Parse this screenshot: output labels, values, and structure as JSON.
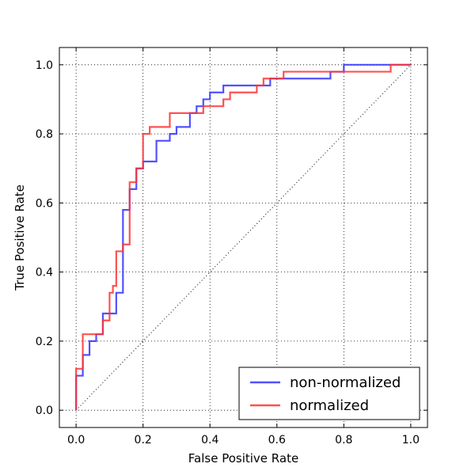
{
  "chart_data": {
    "type": "line",
    "xlabel": "False Positive Rate",
    "ylabel": "True Positive Rate",
    "xlim": [
      -0.05,
      1.05
    ],
    "ylim": [
      -0.05,
      1.05
    ],
    "xticks": [
      0.0,
      0.2,
      0.4,
      0.6,
      0.8,
      1.0
    ],
    "yticks": [
      0.0,
      0.2,
      0.4,
      0.6,
      0.8,
      1.0
    ],
    "xtick_labels": [
      "0.0",
      "0.2",
      "0.4",
      "0.6",
      "0.8",
      "1.0"
    ],
    "ytick_labels": [
      "0.0",
      "0.2",
      "0.4",
      "0.6",
      "0.8",
      "1.0"
    ],
    "grid": true,
    "legend_position": "lower-right",
    "series": [
      {
        "name": "non-normalized",
        "color": "#3333ff",
        "step": "post",
        "x": [
          0.0,
          0.0,
          0.02,
          0.02,
          0.04,
          0.04,
          0.06,
          0.06,
          0.08,
          0.08,
          0.1,
          0.1,
          0.12,
          0.12,
          0.14,
          0.14,
          0.16,
          0.16,
          0.18,
          0.18,
          0.2,
          0.2,
          0.24,
          0.24,
          0.28,
          0.28,
          0.3,
          0.3,
          0.34,
          0.34,
          0.36,
          0.36,
          0.38,
          0.38,
          0.4,
          0.4,
          0.44,
          0.44,
          0.58,
          0.58,
          0.76,
          0.76,
          0.8,
          0.8,
          1.0
        ],
        "y": [
          0.0,
          0.1,
          0.1,
          0.16,
          0.16,
          0.2,
          0.2,
          0.22,
          0.22,
          0.28,
          0.28,
          0.28,
          0.28,
          0.34,
          0.34,
          0.58,
          0.58,
          0.64,
          0.64,
          0.7,
          0.7,
          0.72,
          0.72,
          0.78,
          0.78,
          0.8,
          0.8,
          0.82,
          0.82,
          0.86,
          0.86,
          0.88,
          0.88,
          0.9,
          0.9,
          0.92,
          0.92,
          0.94,
          0.94,
          0.96,
          0.96,
          0.98,
          0.98,
          1.0,
          1.0
        ]
      },
      {
        "name": "normalized",
        "color": "#ff3333",
        "step": "post",
        "x": [
          0.0,
          0.0,
          0.02,
          0.02,
          0.06,
          0.06,
          0.08,
          0.08,
          0.1,
          0.1,
          0.11,
          0.11,
          0.12,
          0.12,
          0.14,
          0.14,
          0.16,
          0.16,
          0.18,
          0.18,
          0.2,
          0.2,
          0.22,
          0.22,
          0.28,
          0.28,
          0.38,
          0.38,
          0.44,
          0.44,
          0.46,
          0.46,
          0.54,
          0.54,
          0.56,
          0.56,
          0.62,
          0.62,
          0.94,
          0.94,
          1.0
        ],
        "y": [
          0.0,
          0.12,
          0.12,
          0.22,
          0.22,
          0.22,
          0.22,
          0.26,
          0.26,
          0.34,
          0.34,
          0.36,
          0.36,
          0.46,
          0.46,
          0.48,
          0.48,
          0.66,
          0.66,
          0.7,
          0.7,
          0.8,
          0.8,
          0.82,
          0.82,
          0.86,
          0.86,
          0.88,
          0.88,
          0.9,
          0.9,
          0.92,
          0.92,
          0.94,
          0.94,
          0.96,
          0.96,
          0.98,
          0.98,
          1.0,
          1.0
        ]
      },
      {
        "color": "#000000",
        "style": "dotted",
        "x": [
          0.0,
          1.0
        ],
        "y": [
          0.0,
          1.0
        ]
      }
    ]
  }
}
